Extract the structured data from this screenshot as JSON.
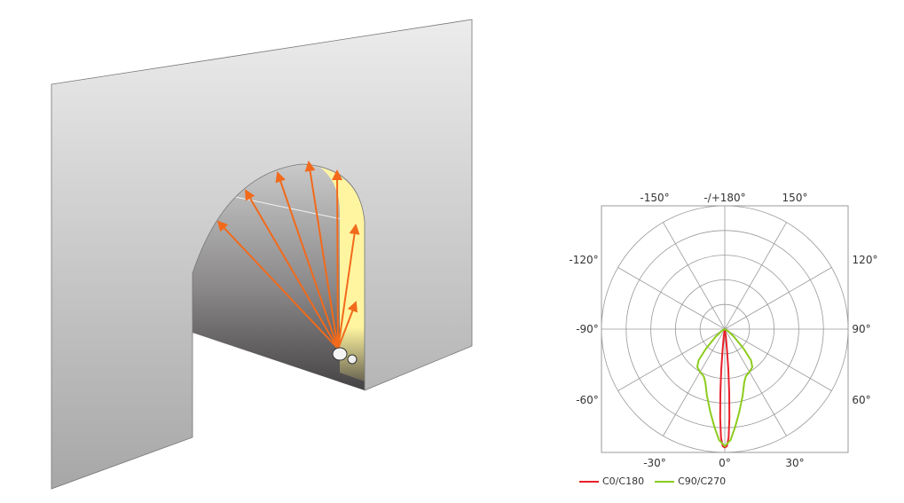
{
  "chart_data": {
    "type": "polar",
    "angle_labels": [
      {
        "key": "m150",
        "text": "-150°"
      },
      {
        "key": "180",
        "text": "-/+180°"
      },
      {
        "key": "150",
        "text": "150°"
      },
      {
        "key": "m120",
        "text": "-120°"
      },
      {
        "key": "120",
        "text": "120°"
      },
      {
        "key": "m90",
        "text": "-90°"
      },
      {
        "key": "90",
        "text": "90°"
      },
      {
        "key": "m60",
        "text": "-60°"
      },
      {
        "key": "60",
        "text": "60°"
      },
      {
        "key": "m30",
        "text": "-30°"
      },
      {
        "key": "0",
        "text": "0°"
      },
      {
        "key": "30",
        "text": "30°"
      }
    ],
    "rings": 5,
    "spoke_step_deg": 30,
    "grid": true,
    "legend_position": "bottom-left",
    "series": [
      {
        "name": "C0/C180",
        "color": "#e8202a",
        "points": [
          [
            0,
            0.96
          ],
          [
            1,
            0.95
          ],
          [
            2,
            0.88
          ],
          [
            3,
            0.72
          ],
          [
            4,
            0.52
          ],
          [
            5,
            0.33
          ],
          [
            6,
            0.18
          ],
          [
            8,
            0.06
          ],
          [
            12,
            0.0
          ]
        ]
      },
      {
        "name": "C90/C270",
        "color": "#8ccc1c",
        "points": [
          [
            0,
            0.95
          ],
          [
            3,
            0.9
          ],
          [
            6,
            0.8
          ],
          [
            10,
            0.68
          ],
          [
            15,
            0.56
          ],
          [
            20,
            0.46
          ],
          [
            24,
            0.42
          ],
          [
            30,
            0.4
          ],
          [
            36,
            0.38
          ],
          [
            40,
            0.33
          ],
          [
            44,
            0.22
          ],
          [
            50,
            0.1
          ],
          [
            60,
            0.03
          ],
          [
            90,
            0.0
          ]
        ]
      }
    ]
  },
  "illustration": {
    "wall_color": "#c8c8c8",
    "glow_color": "#fff5a0",
    "ray_color": "#f26a1b"
  }
}
